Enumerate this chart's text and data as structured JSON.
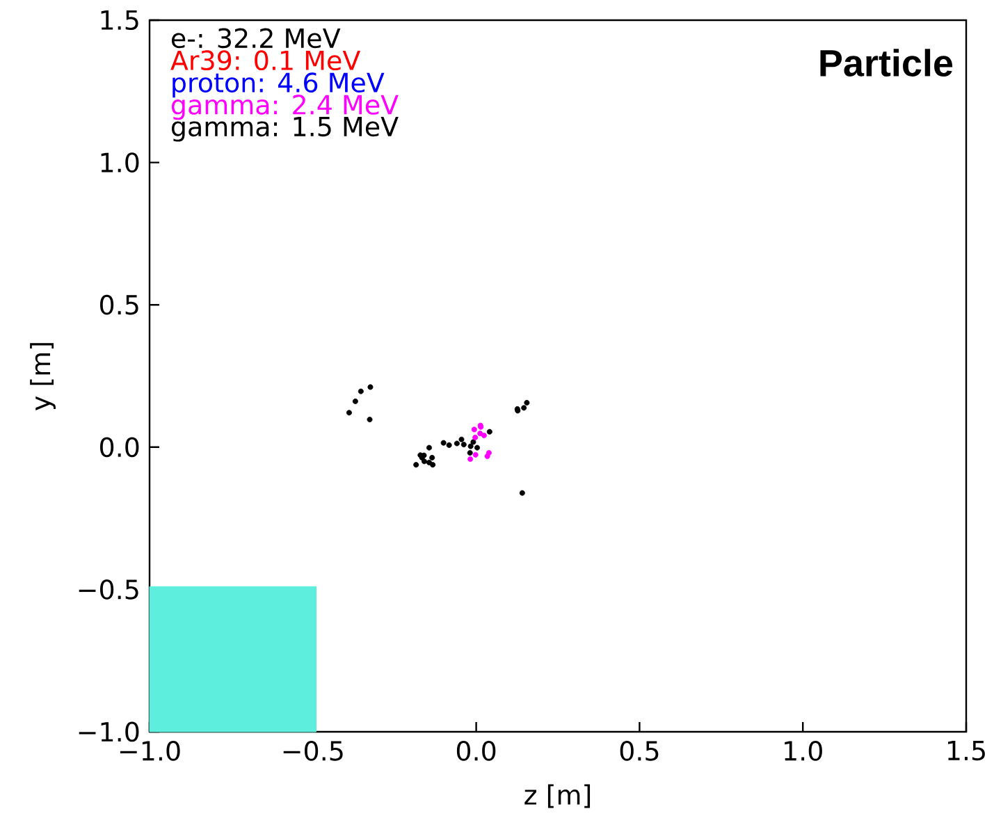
{
  "chart_data": {
    "type": "scatter",
    "title": "Particle",
    "xlabel": "z [m]",
    "ylabel": "y [m]",
    "xlim": [
      -1.0,
      1.5
    ],
    "ylim": [
      -1.0,
      1.5
    ],
    "xticks": [
      {
        "value": -1.0,
        "label": "−1.0"
      },
      {
        "value": -0.5,
        "label": "−0.5"
      },
      {
        "value": 0.0,
        "label": "0.0"
      },
      {
        "value": 0.5,
        "label": "0.5"
      },
      {
        "value": 1.0,
        "label": "1.0"
      },
      {
        "value": 1.5,
        "label": "1.5"
      }
    ],
    "yticks": [
      {
        "value": -1.0,
        "label": "−1.0"
      },
      {
        "value": -0.5,
        "label": "−0.5"
      },
      {
        "value": 0.0,
        "label": "0.0"
      },
      {
        "value": 0.5,
        "label": "0.5"
      },
      {
        "value": 1.0,
        "label": "1.0"
      },
      {
        "value": 1.5,
        "label": "1.5"
      }
    ],
    "legend": "top left",
    "grid": false,
    "series": [
      {
        "name": "e-: 32.2 MeV",
        "color": "#000000",
        "x": [
          -0.324,
          -0.353,
          -0.37,
          -0.389,
          -0.326,
          0.155,
          0.146,
          0.126,
          0.127,
          0.141,
          -0.1,
          -0.083,
          -0.059,
          -0.038,
          -0.017,
          0.003,
          -0.045,
          -0.009,
          0.041,
          -0.019,
          -0.144,
          -0.171,
          -0.16,
          -0.166,
          -0.159,
          -0.135,
          -0.144,
          -0.133,
          -0.184
        ],
        "values": [
          0.211,
          0.196,
          0.161,
          0.121,
          0.097,
          0.156,
          0.138,
          0.134,
          0.128,
          -0.161,
          0.015,
          0.007,
          0.013,
          0.009,
          0.003,
          -0.002,
          0.027,
          0.018,
          0.054,
          -0.02,
          -0.002,
          -0.028,
          -0.029,
          -0.037,
          -0.05,
          -0.037,
          -0.054,
          -0.062,
          -0.062
        ]
      },
      {
        "name": "Ar39: 0.1 MeV",
        "color": "#ff0000"
      },
      {
        "name": "proton: 4.6 MeV",
        "color": "#0000ff"
      },
      {
        "name": "gamma: 2.4 MeV",
        "color": "#ff00ff",
        "x": [
          -0.006,
          0.013,
          0.014,
          -0.003,
          0.012,
          0.024,
          -0.002,
          -0.018,
          0.039,
          0.034
        ],
        "values": [
          0.062,
          0.076,
          0.071,
          0.034,
          0.048,
          0.041,
          -0.027,
          -0.042,
          -0.02,
          -0.032
        ]
      },
      {
        "name": "gamma: 1.5 MeV",
        "color": "#000000"
      },
      {
        "type": "area",
        "color": "#5eeede",
        "x": [
          -1.0,
          -1.0,
          -0.49,
          -0.49
        ],
        "values": [
          -1.0,
          -0.49,
          -0.49,
          -1.0
        ]
      }
    ]
  }
}
